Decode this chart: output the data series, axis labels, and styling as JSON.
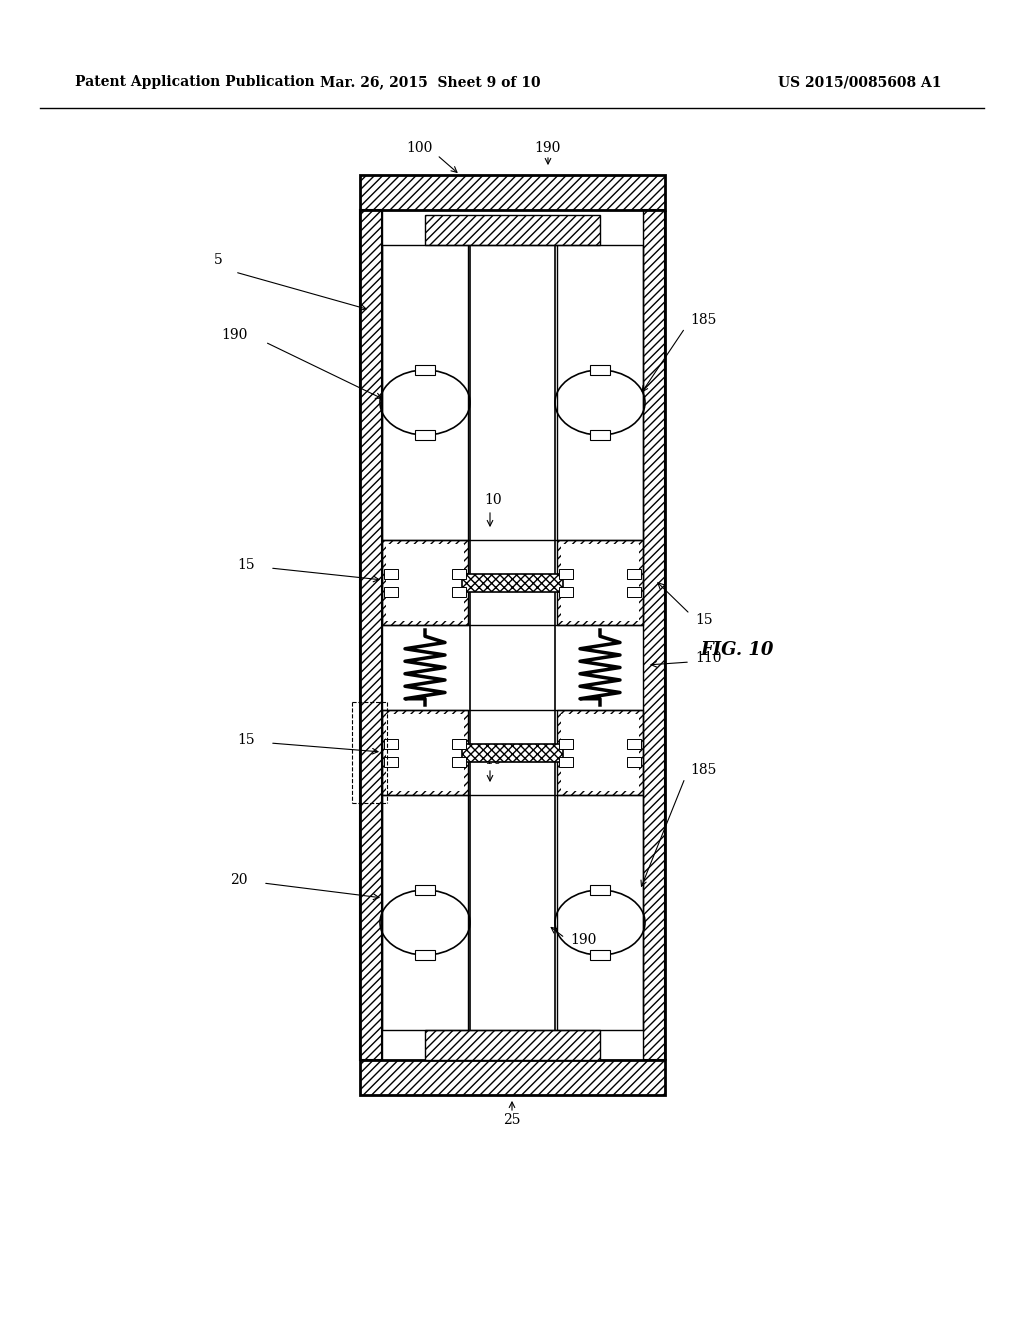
{
  "title_left": "Patent Application Publication",
  "title_mid": "Mar. 26, 2015  Sheet 9 of 10",
  "title_right": "US 2015/0085608 A1",
  "fig_label": "FIG. 10",
  "bg_color": "#ffffff",
  "line_color": "#000000",
  "font_size_header": 10,
  "font_size_label": 10
}
